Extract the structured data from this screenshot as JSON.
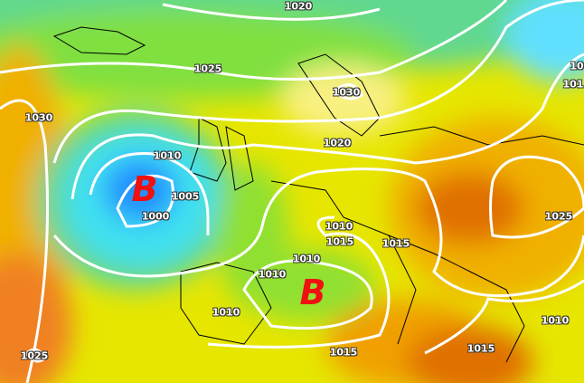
{
  "map": {
    "type": "surface pressure isobars",
    "colors": {
      "deep_low": "#1e90ff",
      "low": "#40e0ff",
      "mid": "#80e020",
      "neutral": "#f0f000",
      "high": "#f0a000",
      "very_high": "#e06000",
      "isobar": "#ffffff",
      "coast": "#000000",
      "low_marker": "#f01010"
    },
    "low_centers": [
      {
        "symbol": "B"
      },
      {
        "symbol": "B"
      }
    ],
    "isobar_labels": [
      "1020",
      "1025",
      "1030",
      "1030",
      "1020",
      "1010",
      "1005",
      "1000",
      "1010",
      "1010",
      "1015",
      "1015",
      "1010",
      "1010",
      "1025",
      "1010",
      "1015",
      "1015",
      "1025",
      "10",
      "101"
    ]
  }
}
